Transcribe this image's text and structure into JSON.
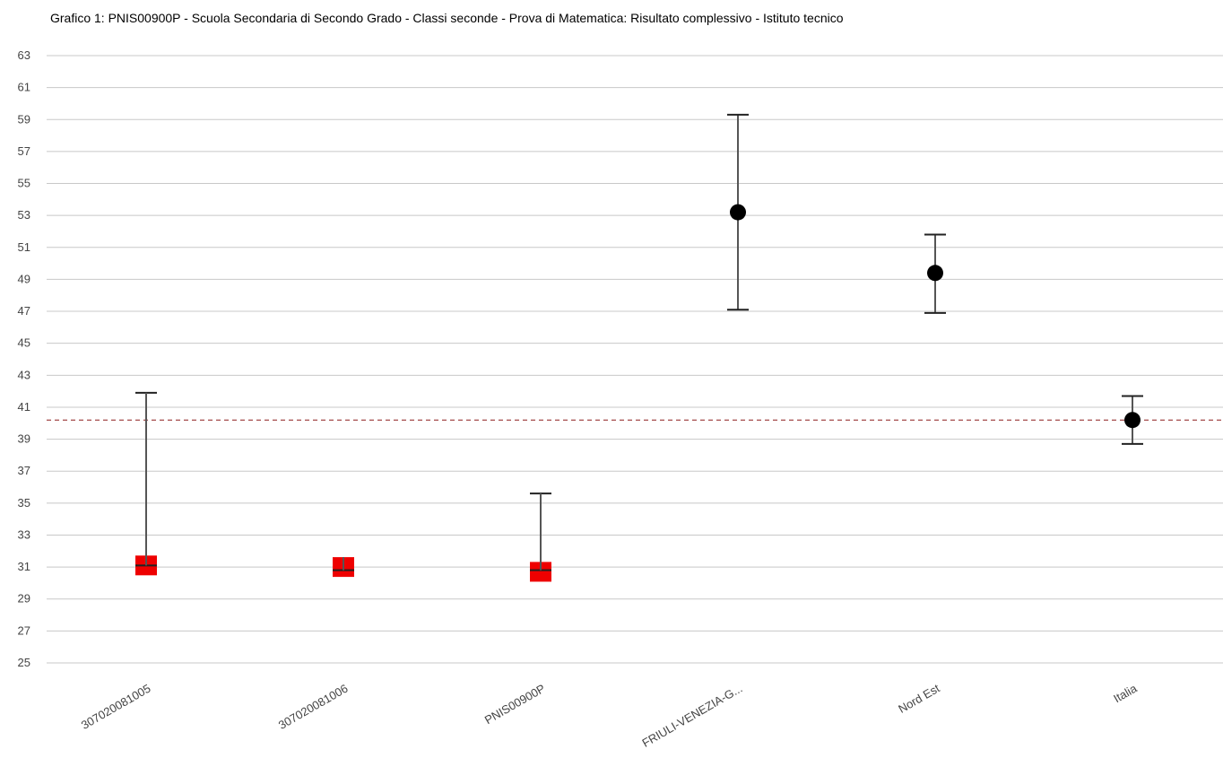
{
  "chart_data": {
    "type": "scatter",
    "title": "Grafico 1: PNIS00900P - Scuola Secondaria di Secondo Grado - Classi seconde - Prova di Matematica: Risultato complessivo - Istituto tecnico",
    "xlabel": "",
    "ylabel": "",
    "ylim": [
      25,
      63
    ],
    "yticks": [
      25,
      27,
      29,
      31,
      33,
      35,
      37,
      39,
      41,
      43,
      45,
      47,
      49,
      51,
      53,
      55,
      57,
      59,
      61,
      63
    ],
    "grid": true,
    "reference_line": {
      "value": 40.2,
      "style": "dashed",
      "color": "#8b1a1a"
    },
    "categories": [
      "307020081005",
      "307020081006",
      "PNIS00900P",
      "FRIULI-VENEZIA-G...",
      "Nord Est",
      "Italia"
    ],
    "points": [
      {
        "category": "307020081005",
        "value": 31.1,
        "low": 31.1,
        "high": 41.9,
        "marker": "square",
        "color": "#ee0000"
      },
      {
        "category": "307020081006",
        "value": 31.0,
        "low": 30.8,
        "high": 31.4,
        "marker": "square",
        "color": "#ee0000"
      },
      {
        "category": "PNIS00900P",
        "value": 30.7,
        "low": 30.8,
        "high": 35.6,
        "marker": "square",
        "color": "#ee0000"
      },
      {
        "category": "FRIULI-VENEZIA-G...",
        "value": 53.2,
        "low": 47.1,
        "high": 59.3,
        "marker": "circle",
        "color": "#000000"
      },
      {
        "category": "Nord Est",
        "value": 49.4,
        "low": 46.9,
        "high": 51.8,
        "marker": "circle",
        "color": "#000000"
      },
      {
        "category": "Italia",
        "value": 40.2,
        "low": 38.7,
        "high": 41.7,
        "marker": "circle",
        "color": "#000000"
      }
    ]
  }
}
